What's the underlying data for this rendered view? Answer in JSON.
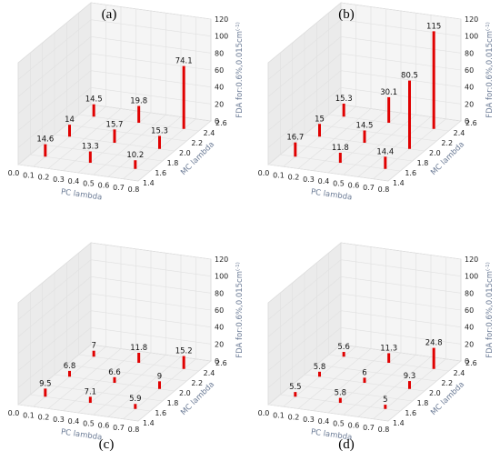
{
  "chart_data": [
    {
      "type": "bar3d",
      "panel_label": "(a)",
      "xlabel": "PC lambda",
      "ylabel": "MC lambda",
      "zlabel": "FDA for:0.6%,0.015cm",
      "zlabel_sup": "(-1)",
      "x_ticks": [
        "0.0",
        "0.1",
        "0.2",
        "0.3",
        "0.4",
        "0.5",
        "0.6",
        "0.7",
        "0.8"
      ],
      "y_ticks": [
        "1.4",
        "1.6",
        "1.8",
        "2.0",
        "2.2",
        "2.4",
        "2.6"
      ],
      "z_ticks": [
        "0",
        "20",
        "40",
        "60",
        "80",
        "100",
        "120"
      ],
      "xlim": [
        0,
        0.8
      ],
      "ylim": [
        1.4,
        2.6
      ],
      "zlim": [
        0,
        120
      ],
      "color": "#e00000",
      "points": [
        {
          "x": 0.1,
          "y": 1.6,
          "z": 14.6,
          "label": "14.6"
        },
        {
          "x": 0.1,
          "y": 2.0,
          "z": 14,
          "label": "14"
        },
        {
          "x": 0.1,
          "y": 2.4,
          "z": 14.5,
          "label": "14.5"
        },
        {
          "x": 0.4,
          "y": 1.6,
          "z": 13.3,
          "label": "13.3"
        },
        {
          "x": 0.4,
          "y": 2.0,
          "z": 15.7,
          "label": "15.7"
        },
        {
          "x": 0.4,
          "y": 2.4,
          "z": 19.8,
          "label": "19.8"
        },
        {
          "x": 0.7,
          "y": 1.6,
          "z": 10.2,
          "label": "10.2"
        },
        {
          "x": 0.7,
          "y": 2.0,
          "z": 15.3,
          "label": "15.3"
        },
        {
          "x": 0.7,
          "y": 2.4,
          "z": 74.1,
          "label": "74.1"
        }
      ]
    },
    {
      "type": "bar3d",
      "panel_label": "(b)",
      "xlabel": "PC lambda",
      "ylabel": "MC lambda",
      "zlabel": "FDA for:0.6%,0.015cm",
      "zlabel_sup": "(-1)",
      "x_ticks": [
        "0.0",
        "0.1",
        "0.2",
        "0.3",
        "0.4",
        "0.5",
        "0.6",
        "0.7",
        "0.8"
      ],
      "y_ticks": [
        "1.4",
        "1.6",
        "1.8",
        "2.0",
        "2.2",
        "2.4",
        "2.6"
      ],
      "z_ticks": [
        "0",
        "20",
        "40",
        "60",
        "80",
        "100",
        "120"
      ],
      "xlim": [
        0,
        0.8
      ],
      "ylim": [
        1.4,
        2.6
      ],
      "zlim": [
        0,
        120
      ],
      "color": "#e00000",
      "points": [
        {
          "x": 0.1,
          "y": 1.6,
          "z": 16.7,
          "label": "16.7"
        },
        {
          "x": 0.1,
          "y": 2.0,
          "z": 15,
          "label": "15"
        },
        {
          "x": 0.1,
          "y": 2.4,
          "z": 15.3,
          "label": "15.3"
        },
        {
          "x": 0.4,
          "y": 1.6,
          "z": 11.8,
          "label": "11.8"
        },
        {
          "x": 0.4,
          "y": 2.0,
          "z": 14.5,
          "label": "14.5"
        },
        {
          "x": 0.4,
          "y": 2.4,
          "z": 30.1,
          "label": "30.1"
        },
        {
          "x": 0.7,
          "y": 1.6,
          "z": 14.4,
          "label": "14.4"
        },
        {
          "x": 0.7,
          "y": 2.0,
          "z": 80.5,
          "label": "80.5"
        },
        {
          "x": 0.7,
          "y": 2.4,
          "z": 115,
          "label": "115"
        }
      ]
    },
    {
      "type": "bar3d",
      "panel_label": "(c)",
      "xlabel": "PC lambda",
      "ylabel": "MC lambda",
      "zlabel": "FDA for:0.6%,0.015cm",
      "zlabel_sup": "(-1)",
      "x_ticks": [
        "0.0",
        "0.1",
        "0.2",
        "0.3",
        "0.4",
        "0.5",
        "0.6",
        "0.7",
        "0.8"
      ],
      "y_ticks": [
        "1.4",
        "1.6",
        "1.8",
        "2.0",
        "2.2",
        "2.4",
        "2.6"
      ],
      "z_ticks": [
        "0",
        "20",
        "40",
        "60",
        "80",
        "100",
        "120"
      ],
      "xlim": [
        0,
        0.8
      ],
      "ylim": [
        1.4,
        2.6
      ],
      "zlim": [
        0,
        120
      ],
      "color": "#e00000",
      "points": [
        {
          "x": 0.1,
          "y": 1.6,
          "z": 9.5,
          "label": "9.5"
        },
        {
          "x": 0.1,
          "y": 2.0,
          "z": 6.8,
          "label": "6.8"
        },
        {
          "x": 0.1,
          "y": 2.4,
          "z": 7,
          "label": "7"
        },
        {
          "x": 0.4,
          "y": 1.6,
          "z": 7.1,
          "label": "7.1"
        },
        {
          "x": 0.4,
          "y": 2.0,
          "z": 6.6,
          "label": "6.6"
        },
        {
          "x": 0.4,
          "y": 2.4,
          "z": 11.8,
          "label": "11.8"
        },
        {
          "x": 0.7,
          "y": 1.6,
          "z": 5.9,
          "label": "5.9"
        },
        {
          "x": 0.7,
          "y": 2.0,
          "z": 9,
          "label": "9"
        },
        {
          "x": 0.7,
          "y": 2.4,
          "z": 15.2,
          "label": "15.2"
        }
      ]
    },
    {
      "type": "bar3d",
      "panel_label": "(d)",
      "xlabel": "PC lambda",
      "ylabel": "MC lambda",
      "zlabel": "FDA for:0.6%,0.015cm",
      "zlabel_sup": "(-1)",
      "x_ticks": [
        "0.0",
        "0.1",
        "0.2",
        "0.3",
        "0.4",
        "0.5",
        "0.6",
        "0.7",
        "0.8"
      ],
      "y_ticks": [
        "1.4",
        "1.6",
        "1.8",
        "2.0",
        "2.2",
        "2.4",
        "2.6"
      ],
      "z_ticks": [
        "0",
        "20",
        "40",
        "60",
        "80",
        "100",
        "120"
      ],
      "xlim": [
        0,
        0.8
      ],
      "ylim": [
        1.4,
        2.6
      ],
      "zlim": [
        0,
        120
      ],
      "color": "#e00000",
      "points": [
        {
          "x": 0.1,
          "y": 1.6,
          "z": 5.5,
          "label": "5.5"
        },
        {
          "x": 0.1,
          "y": 2.0,
          "z": 5.8,
          "label": "5.8"
        },
        {
          "x": 0.1,
          "y": 2.4,
          "z": 5.6,
          "label": "5.6"
        },
        {
          "x": 0.4,
          "y": 1.6,
          "z": 5.8,
          "label": "5.8"
        },
        {
          "x": 0.4,
          "y": 2.0,
          "z": 6,
          "label": "6"
        },
        {
          "x": 0.4,
          "y": 2.4,
          "z": 11.3,
          "label": "11.3"
        },
        {
          "x": 0.7,
          "y": 1.6,
          "z": 5,
          "label": "5"
        },
        {
          "x": 0.7,
          "y": 2.0,
          "z": 9.3,
          "label": "9.3"
        },
        {
          "x": 0.7,
          "y": 2.4,
          "z": 24.8,
          "label": "24.8"
        }
      ]
    }
  ]
}
